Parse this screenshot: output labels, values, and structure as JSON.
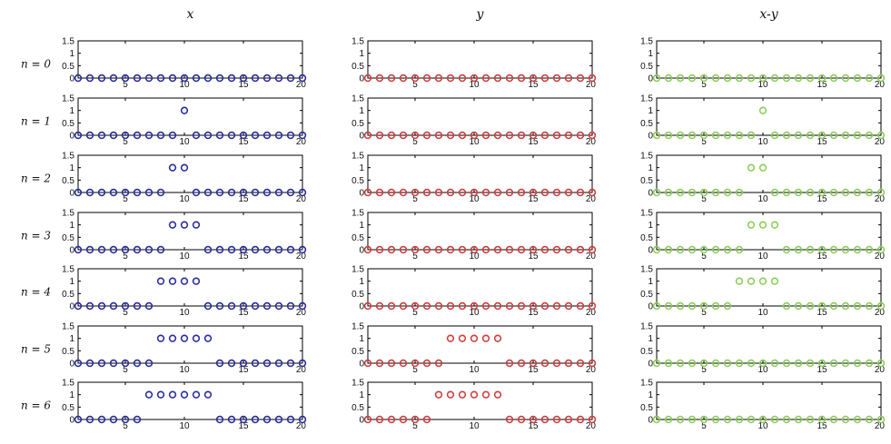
{
  "figure": {
    "columns": [
      {
        "title": "x",
        "color": "#2b2f9e"
      },
      {
        "title": "y",
        "color": "#d04040"
      },
      {
        "title": "x-y",
        "color": "#8ccf5a"
      }
    ],
    "row_labels": [
      "n = 0",
      "n = 1",
      "n = 2",
      "n = 3",
      "n = 4",
      "n = 5",
      "n = 6"
    ]
  },
  "chart_data": {
    "type": "scatter",
    "marker": "circle-open",
    "xlim": [
      1,
      20
    ],
    "ylim": [
      0,
      1.5
    ],
    "xticks": [
      5,
      10,
      15,
      20
    ],
    "xtick_labels": [
      "5",
      "10",
      "15",
      "20"
    ],
    "yticks": [
      0,
      0.5,
      1,
      1.5
    ],
    "ytick_labels": [
      "0",
      "0.5",
      "1",
      "1.5"
    ],
    "x": [
      1,
      2,
      3,
      4,
      5,
      6,
      7,
      8,
      9,
      10,
      11,
      12,
      13,
      14,
      15,
      16,
      17,
      18,
      19,
      20
    ],
    "panels": [
      {
        "column": "x",
        "row": "n = 0",
        "y": [
          0,
          0,
          0,
          0,
          0,
          0,
          0,
          0,
          0,
          0,
          0,
          0,
          0,
          0,
          0,
          0,
          0,
          0,
          0,
          0
        ]
      },
      {
        "column": "y",
        "row": "n = 0",
        "y": [
          0,
          0,
          0,
          0,
          0,
          0,
          0,
          0,
          0,
          0,
          0,
          0,
          0,
          0,
          0,
          0,
          0,
          0,
          0,
          0
        ]
      },
      {
        "column": "x-y",
        "row": "n = 0",
        "y": [
          0,
          0,
          0,
          0,
          0,
          0,
          0,
          0,
          0,
          0,
          0,
          0,
          0,
          0,
          0,
          0,
          0,
          0,
          0,
          0
        ]
      },
      {
        "column": "x",
        "row": "n = 1",
        "y": [
          0,
          0,
          0,
          0,
          0,
          0,
          0,
          0,
          0,
          1,
          0,
          0,
          0,
          0,
          0,
          0,
          0,
          0,
          0,
          0
        ]
      },
      {
        "column": "y",
        "row": "n = 1",
        "y": [
          0,
          0,
          0,
          0,
          0,
          0,
          0,
          0,
          0,
          0,
          0,
          0,
          0,
          0,
          0,
          0,
          0,
          0,
          0,
          0
        ]
      },
      {
        "column": "x-y",
        "row": "n = 1",
        "y": [
          0,
          0,
          0,
          0,
          0,
          0,
          0,
          0,
          0,
          1,
          0,
          0,
          0,
          0,
          0,
          0,
          0,
          0,
          0,
          0
        ]
      },
      {
        "column": "x",
        "row": "n = 2",
        "y": [
          0,
          0,
          0,
          0,
          0,
          0,
          0,
          0,
          1,
          1,
          0,
          0,
          0,
          0,
          0,
          0,
          0,
          0,
          0,
          0
        ]
      },
      {
        "column": "y",
        "row": "n = 2",
        "y": [
          0,
          0,
          0,
          0,
          0,
          0,
          0,
          0,
          0,
          0,
          0,
          0,
          0,
          0,
          0,
          0,
          0,
          0,
          0,
          0
        ]
      },
      {
        "column": "x-y",
        "row": "n = 2",
        "y": [
          0,
          0,
          0,
          0,
          0,
          0,
          0,
          0,
          1,
          1,
          0,
          0,
          0,
          0,
          0,
          0,
          0,
          0,
          0,
          0
        ]
      },
      {
        "column": "x",
        "row": "n = 3",
        "y": [
          0,
          0,
          0,
          0,
          0,
          0,
          0,
          0,
          1,
          1,
          1,
          0,
          0,
          0,
          0,
          0,
          0,
          0,
          0,
          0
        ]
      },
      {
        "column": "y",
        "row": "n = 3",
        "y": [
          0,
          0,
          0,
          0,
          0,
          0,
          0,
          0,
          0,
          0,
          0,
          0,
          0,
          0,
          0,
          0,
          0,
          0,
          0,
          0
        ]
      },
      {
        "column": "x-y",
        "row": "n = 3",
        "y": [
          0,
          0,
          0,
          0,
          0,
          0,
          0,
          0,
          1,
          1,
          1,
          0,
          0,
          0,
          0,
          0,
          0,
          0,
          0,
          0
        ]
      },
      {
        "column": "x",
        "row": "n = 4",
        "y": [
          0,
          0,
          0,
          0,
          0,
          0,
          0,
          1,
          1,
          1,
          1,
          0,
          0,
          0,
          0,
          0,
          0,
          0,
          0,
          0
        ]
      },
      {
        "column": "y",
        "row": "n = 4",
        "y": [
          0,
          0,
          0,
          0,
          0,
          0,
          0,
          0,
          0,
          0,
          0,
          0,
          0,
          0,
          0,
          0,
          0,
          0,
          0,
          0
        ]
      },
      {
        "column": "x-y",
        "row": "n = 4",
        "y": [
          0,
          0,
          0,
          0,
          0,
          0,
          0,
          1,
          1,
          1,
          1,
          0,
          0,
          0,
          0,
          0,
          0,
          0,
          0,
          0
        ]
      },
      {
        "column": "x",
        "row": "n = 5",
        "y": [
          0,
          0,
          0,
          0,
          0,
          0,
          0,
          1,
          1,
          1,
          1,
          1,
          0,
          0,
          0,
          0,
          0,
          0,
          0,
          0
        ]
      },
      {
        "column": "y",
        "row": "n = 5",
        "y": [
          0,
          0,
          0,
          0,
          0,
          0,
          0,
          1,
          1,
          1,
          1,
          1,
          0,
          0,
          0,
          0,
          0,
          0,
          0,
          0
        ]
      },
      {
        "column": "x-y",
        "row": "n = 5",
        "y": [
          0,
          0,
          0,
          0,
          0,
          0,
          0,
          0,
          0,
          0,
          0,
          0,
          0,
          0,
          0,
          0,
          0,
          0,
          0,
          0
        ]
      },
      {
        "column": "x",
        "row": "n = 6",
        "y": [
          0,
          0,
          0,
          0,
          0,
          0,
          1,
          1,
          1,
          1,
          1,
          1,
          0,
          0,
          0,
          0,
          0,
          0,
          0,
          0
        ]
      },
      {
        "column": "y",
        "row": "n = 6",
        "y": [
          0,
          0,
          0,
          0,
          0,
          0,
          1,
          1,
          1,
          1,
          1,
          1,
          0,
          0,
          0,
          0,
          0,
          0,
          0,
          0
        ]
      },
      {
        "column": "x-y",
        "row": "n = 6",
        "y": [
          0,
          0,
          0,
          0,
          0,
          0,
          0,
          0,
          0,
          0,
          0,
          0,
          0,
          0,
          0,
          0,
          0,
          0,
          0,
          0
        ]
      }
    ]
  }
}
